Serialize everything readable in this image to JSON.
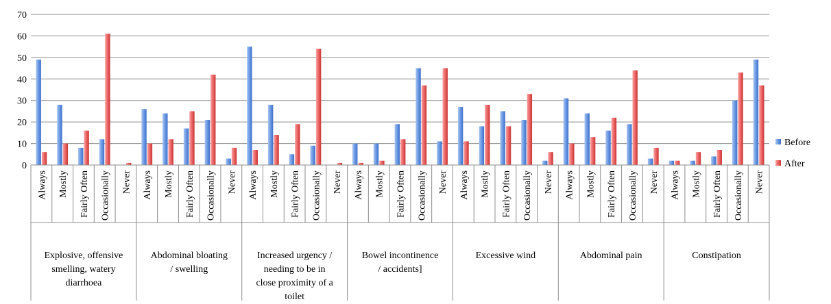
{
  "chart_data": {
    "type": "bar",
    "ylim": [
      0,
      70
    ],
    "yticks": [
      0,
      10,
      20,
      30,
      40,
      50,
      60,
      70
    ],
    "grid": true,
    "legend_position": "right",
    "sub_categories": [
      "Always",
      "Mostly",
      "Fairly Often",
      "Occasionally",
      "Never"
    ],
    "groups": [
      {
        "label_lines": [
          "Explosive, offensive",
          "smelling, watery",
          "diarrhoea"
        ]
      },
      {
        "label_lines": [
          "Abdominal bloating",
          "/ swelling"
        ]
      },
      {
        "label_lines": [
          "Increased urgency /",
          "needing to be in",
          "close proximity of a",
          "toilet"
        ]
      },
      {
        "label_lines": [
          "Bowel incontinence",
          "/ accidents]"
        ]
      },
      {
        "label_lines": [
          "Excessive wind"
        ]
      },
      {
        "label_lines": [
          "Abdominal pain"
        ]
      },
      {
        "label_lines": [
          "Constipation"
        ]
      }
    ],
    "series": [
      {
        "name": "Before",
        "color": "#4f81bd",
        "values": [
          [
            49,
            28,
            8,
            12,
            0
          ],
          [
            26,
            24,
            17,
            21,
            3
          ],
          [
            55,
            28,
            5,
            9,
            0
          ],
          [
            10,
            10,
            19,
            45,
            11
          ],
          [
            27,
            18,
            25,
            21,
            2
          ],
          [
            31,
            24,
            16,
            19,
            3
          ],
          [
            2,
            2,
            4,
            30,
            49
          ]
        ]
      },
      {
        "name": "After",
        "color": "#e8494a",
        "values": [
          [
            6,
            10,
            16,
            61,
            1
          ],
          [
            10,
            12,
            25,
            42,
            8
          ],
          [
            7,
            14,
            19,
            54,
            1
          ],
          [
            1,
            2,
            12,
            37,
            45
          ],
          [
            11,
            28,
            18,
            33,
            6
          ],
          [
            10,
            13,
            22,
            44,
            8
          ],
          [
            2,
            6,
            7,
            43,
            37
          ]
        ]
      }
    ]
  }
}
